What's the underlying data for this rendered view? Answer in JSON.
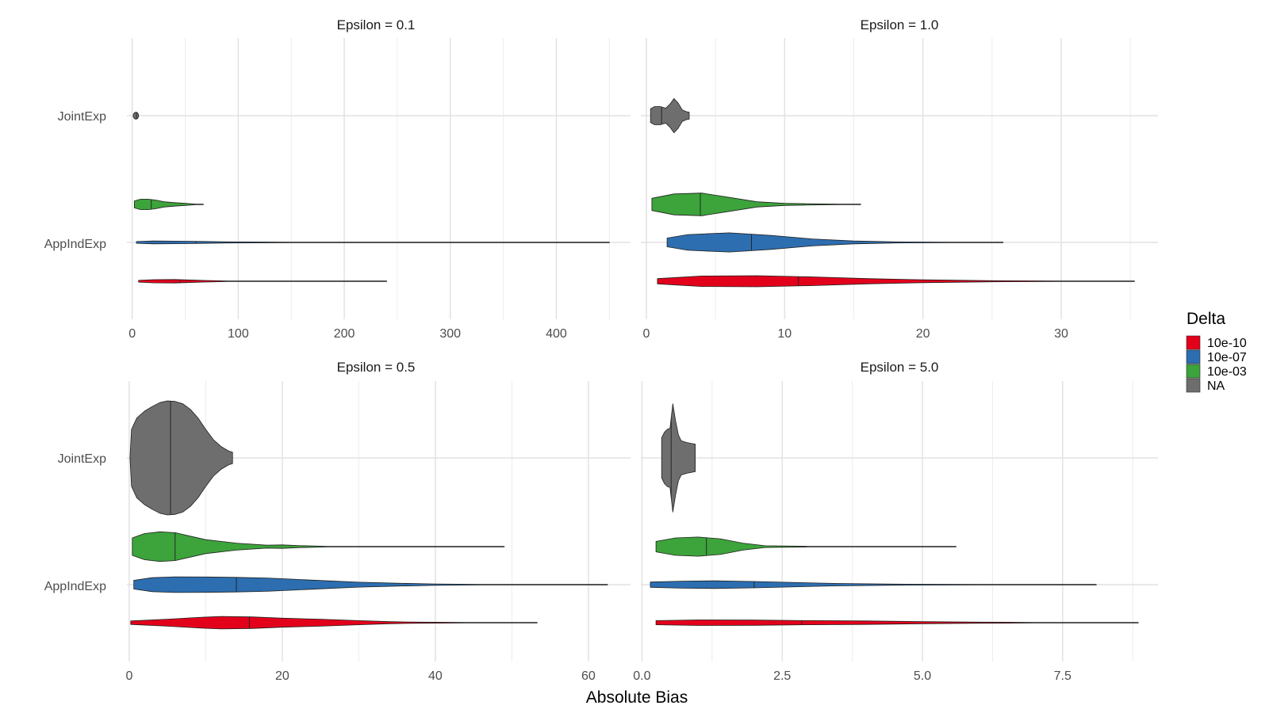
{
  "chart_data": {
    "type": "violin",
    "xlabel": "Absolute Bias",
    "categories": [
      "JointExp",
      "AppIndExp"
    ],
    "legend": {
      "title": "Delta",
      "placement": "right",
      "entries": [
        {
          "label": "10e-10",
          "color": "#e3001b"
        },
        {
          "label": "10e-07",
          "color": "#2d6eb0"
        },
        {
          "label": "10e-03",
          "color": "#3da33b"
        },
        {
          "label": "NA",
          "color": "#6e6e6e"
        }
      ]
    },
    "grid": true,
    "panels": [
      {
        "title": "Epsilon = 0.1",
        "xlim": [
          -5,
          470
        ],
        "xticks": [
          0,
          100,
          200,
          300,
          400
        ],
        "xtick_labels": [
          "0",
          "100",
          "200",
          "300",
          "400"
        ],
        "series": [
          {
            "group": "JointExp",
            "delta": "NA",
            "min": 1,
            "max": 6,
            "median": 4,
            "profile": [
              [
                1,
                0.02
              ],
              [
                2,
                0.05
              ],
              [
                3,
                0.06
              ],
              [
                4,
                0.06
              ],
              [
                5,
                0.05
              ],
              [
                6,
                0.02
              ]
            ]
          },
          {
            "group": "AppIndExp",
            "delta": "10e-03",
            "min": 2,
            "max": 67,
            "median": 18,
            "profile": [
              [
                2,
                0.2
              ],
              [
                8,
                0.3
              ],
              [
                15,
                0.3
              ],
              [
                22,
                0.25
              ],
              [
                30,
                0.15
              ],
              [
                40,
                0.1
              ],
              [
                50,
                0.06
              ],
              [
                60,
                0.02
              ],
              [
                67,
                0.0
              ]
            ]
          },
          {
            "group": "AppIndExp",
            "delta": "10e-07",
            "min": 4,
            "max": 450,
            "median": 60,
            "profile": [
              [
                4,
                0.05
              ],
              [
                20,
                0.08
              ],
              [
                50,
                0.07
              ],
              [
                90,
                0.03
              ],
              [
                150,
                0.01
              ],
              [
                250,
                0.0
              ],
              [
                450,
                0.0
              ]
            ]
          },
          {
            "group": "AppIndExp",
            "delta": "10e-10",
            "min": 6,
            "max": 240,
            "median": 45,
            "profile": [
              [
                6,
                0.05
              ],
              [
                20,
                0.09
              ],
              [
                40,
                0.1
              ],
              [
                60,
                0.06
              ],
              [
                90,
                0.02
              ],
              [
                150,
                0.0
              ],
              [
                240,
                0.0
              ]
            ]
          }
        ]
      },
      {
        "title": "Epsilon = 1.0",
        "xlim": [
          -0.4,
          37
        ],
        "xticks": [
          0,
          10,
          20,
          30
        ],
        "xtick_labels": [
          "0",
          "10",
          "20",
          "30"
        ],
        "series": [
          {
            "group": "JointExp",
            "delta": "NA",
            "min": 0.3,
            "max": 3.1,
            "median": 1.1,
            "profile": [
              [
                0.3,
                0.12
              ],
              [
                0.6,
                0.16
              ],
              [
                1.0,
                0.16
              ],
              [
                1.4,
                0.13
              ],
              [
                1.7,
                0.2
              ],
              [
                2.0,
                0.3
              ],
              [
                2.3,
                0.22
              ],
              [
                2.6,
                0.1
              ],
              [
                2.9,
                0.07
              ],
              [
                3.1,
                0.06
              ]
            ]
          },
          {
            "group": "AppIndExp",
            "delta": "10e-03",
            "min": 0.4,
            "max": 15.5,
            "median": 3.9,
            "profile": [
              [
                0.4,
                0.35
              ],
              [
                2,
                0.6
              ],
              [
                4,
                0.65
              ],
              [
                6,
                0.4
              ],
              [
                8,
                0.15
              ],
              [
                10,
                0.06
              ],
              [
                12,
                0.03
              ],
              [
                14,
                0.01
              ],
              [
                15.5,
                0.0
              ]
            ]
          },
          {
            "group": "AppIndExp",
            "delta": "10e-07",
            "min": 1.5,
            "max": 25.8,
            "median": 7.6,
            "profile": [
              [
                1.5,
                0.25
              ],
              [
                3,
                0.45
              ],
              [
                6,
                0.55
              ],
              [
                9,
                0.4
              ],
              [
                12,
                0.2
              ],
              [
                15,
                0.08
              ],
              [
                18,
                0.03
              ],
              [
                22,
                0.01
              ],
              [
                25.8,
                0.0
              ]
            ]
          },
          {
            "group": "AppIndExp",
            "delta": "10e-10",
            "min": 0.8,
            "max": 35.3,
            "median": 11.0,
            "profile": [
              [
                0.8,
                0.15
              ],
              [
                4,
                0.3
              ],
              [
                8,
                0.32
              ],
              [
                12,
                0.25
              ],
              [
                16,
                0.15
              ],
              [
                20,
                0.08
              ],
              [
                25,
                0.03
              ],
              [
                30,
                0.01
              ],
              [
                35.3,
                0.0
              ]
            ]
          }
        ]
      },
      {
        "title": "Epsilon = 0.5",
        "xlim": [
          -0.3,
          65.5
        ],
        "xticks": [
          0,
          20,
          40,
          60
        ],
        "xtick_labels": [
          "0",
          "20",
          "40",
          "60"
        ],
        "series": [
          {
            "group": "JointExp",
            "delta": "NA",
            "min": 0.1,
            "max": 13.5,
            "median": 5.4,
            "profile": [
              [
                0.1,
                0.0
              ],
              [
                0.3,
                0.5
              ],
              [
                1,
                0.7
              ],
              [
                2,
                0.82
              ],
              [
                3,
                0.9
              ],
              [
                4,
                0.97
              ],
              [
                5,
                1.0
              ],
              [
                6,
                0.99
              ],
              [
                7,
                0.95
              ],
              [
                8,
                0.85
              ],
              [
                9,
                0.7
              ],
              [
                10,
                0.5
              ],
              [
                11,
                0.32
              ],
              [
                12,
                0.2
              ],
              [
                13,
                0.12
              ],
              [
                13.5,
                0.1
              ]
            ]
          },
          {
            "group": "AppIndExp",
            "delta": "10e-03",
            "min": 0.4,
            "max": 49,
            "median": 6.0,
            "profile": [
              [
                0.4,
                0.5
              ],
              [
                2,
                0.75
              ],
              [
                4,
                0.85
              ],
              [
                6,
                0.8
              ],
              [
                8,
                0.6
              ],
              [
                10,
                0.4
              ],
              [
                14,
                0.2
              ],
              [
                18,
                0.08
              ],
              [
                20,
                0.1
              ],
              [
                22,
                0.06
              ],
              [
                26,
                0.02
              ],
              [
                35,
                0.01
              ],
              [
                44,
                0.02
              ],
              [
                49,
                0.0
              ]
            ]
          },
          {
            "group": "AppIndExp",
            "delta": "10e-07",
            "min": 0.6,
            "max": 62.5,
            "median": 14.0,
            "profile": [
              [
                0.6,
                0.25
              ],
              [
                3,
                0.4
              ],
              [
                6,
                0.45
              ],
              [
                10,
                0.44
              ],
              [
                14,
                0.42
              ],
              [
                18,
                0.38
              ],
              [
                22,
                0.3
              ],
              [
                26,
                0.22
              ],
              [
                30,
                0.14
              ],
              [
                35,
                0.08
              ],
              [
                40,
                0.04
              ],
              [
                46,
                0.02
              ],
              [
                52,
                0.01
              ],
              [
                62.5,
                0.0
              ]
            ]
          },
          {
            "group": "AppIndExp",
            "delta": "10e-10",
            "min": 0.2,
            "max": 53.3,
            "median": 15.7,
            "profile": [
              [
                0.2,
                0.1
              ],
              [
                5,
                0.2
              ],
              [
                9,
                0.3
              ],
              [
                12,
                0.36
              ],
              [
                16,
                0.33
              ],
              [
                20,
                0.26
              ],
              [
                25,
                0.2
              ],
              [
                30,
                0.12
              ],
              [
                34,
                0.06
              ],
              [
                38,
                0.03
              ],
              [
                44,
                0.02
              ],
              [
                50,
                0.01
              ],
              [
                53.3,
                0.0
              ]
            ]
          }
        ]
      },
      {
        "title": "Epsilon = 5.0",
        "xlim": [
          -0.02,
          9.2
        ],
        "xticks": [
          0,
          2.5,
          5.0,
          7.5
        ],
        "xtick_labels": [
          "0.0",
          "2.5",
          "5.0",
          "7.5"
        ],
        "series": [
          {
            "group": "JointExp",
            "delta": "NA",
            "min": 0.35,
            "max": 0.95,
            "median": 0.52,
            "profile": [
              [
                0.35,
                0.35
              ],
              [
                0.4,
                0.45
              ],
              [
                0.45,
                0.5
              ],
              [
                0.5,
                0.52
              ],
              [
                0.55,
                0.95
              ],
              [
                0.6,
                0.65
              ],
              [
                0.65,
                0.4
              ],
              [
                0.7,
                0.3
              ],
              [
                0.8,
                0.27
              ],
              [
                0.9,
                0.25
              ],
              [
                0.95,
                0.24
              ]
            ]
          },
          {
            "group": "AppIndExp",
            "delta": "10e-03",
            "min": 0.25,
            "max": 5.6,
            "median": 1.15,
            "profile": [
              [
                0.25,
                0.3
              ],
              [
                0.6,
                0.5
              ],
              [
                1.0,
                0.55
              ],
              [
                1.4,
                0.45
              ],
              [
                1.8,
                0.2
              ],
              [
                2.2,
                0.05
              ],
              [
                3,
                0.02
              ],
              [
                4,
                0.01
              ],
              [
                4.5,
                0.02
              ],
              [
                5.6,
                0.0
              ]
            ]
          },
          {
            "group": "AppIndExp",
            "delta": "10e-07",
            "min": 0.15,
            "max": 8.1,
            "median": 2.0,
            "profile": [
              [
                0.15,
                0.15
              ],
              [
                0.7,
                0.2
              ],
              [
                1.3,
                0.22
              ],
              [
                2.0,
                0.18
              ],
              [
                2.8,
                0.12
              ],
              [
                3.5,
                0.07
              ],
              [
                4.5,
                0.03
              ],
              [
                6,
                0.01
              ],
              [
                8.1,
                0.0
              ]
            ]
          },
          {
            "group": "AppIndExp",
            "delta": "10e-10",
            "min": 0.25,
            "max": 8.85,
            "median": 2.85,
            "profile": [
              [
                0.25,
                0.12
              ],
              [
                1.0,
                0.16
              ],
              [
                2.0,
                0.15
              ],
              [
                3.0,
                0.12
              ],
              [
                4.0,
                0.1
              ],
              [
                5.0,
                0.06
              ],
              [
                6.0,
                0.03
              ],
              [
                7.0,
                0.01
              ],
              [
                8.85,
                0.0
              ]
            ]
          }
        ]
      }
    ]
  }
}
